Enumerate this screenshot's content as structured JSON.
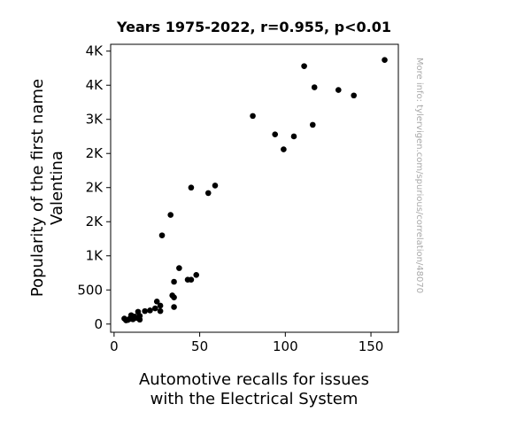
{
  "chart_data": {
    "type": "scatter",
    "title": "Years 1975-2022, r=0.955, p<0.01",
    "xlabel": [
      "Automotive recalls for issues",
      "with the Electrical System"
    ],
    "ylabel": [
      "Popularity of the first name",
      "Valentina"
    ],
    "xlim": [
      -2,
      166
    ],
    "ylim": [
      -120,
      4100
    ],
    "x_ticks": [
      {
        "value": 0,
        "label": "0"
      },
      {
        "value": 50,
        "label": "50"
      },
      {
        "value": 100,
        "label": "100"
      },
      {
        "value": 150,
        "label": "150"
      }
    ],
    "y_ticks": [
      {
        "value": 0,
        "label": "0"
      },
      {
        "value": 500,
        "label": "500"
      },
      {
        "value": 1000,
        "label": "1K"
      },
      {
        "value": 1500,
        "label": "2K"
      },
      {
        "value": 2000,
        "label": "2K"
      },
      {
        "value": 2500,
        "label": "2K"
      },
      {
        "value": 3000,
        "label": "3K"
      },
      {
        "value": 3500,
        "label": "4K"
      },
      {
        "value": 4000,
        "label": "4K"
      }
    ],
    "grid": false,
    "marker_color": "#000000",
    "points": [
      {
        "x": 6,
        "y": 80
      },
      {
        "x": 7,
        "y": 55
      },
      {
        "x": 8,
        "y": 60
      },
      {
        "x": 9,
        "y": 75
      },
      {
        "x": 10,
        "y": 130
      },
      {
        "x": 11,
        "y": 70
      },
      {
        "x": 12,
        "y": 110
      },
      {
        "x": 13,
        "y": 90
      },
      {
        "x": 14,
        "y": 180
      },
      {
        "x": 15,
        "y": 120
      },
      {
        "x": 15,
        "y": 65
      },
      {
        "x": 18,
        "y": 190
      },
      {
        "x": 21,
        "y": 200
      },
      {
        "x": 24,
        "y": 230
      },
      {
        "x": 25,
        "y": 330
      },
      {
        "x": 27,
        "y": 270
      },
      {
        "x": 27,
        "y": 190
      },
      {
        "x": 28,
        "y": 1300
      },
      {
        "x": 33,
        "y": 1600
      },
      {
        "x": 34,
        "y": 420
      },
      {
        "x": 35,
        "y": 390
      },
      {
        "x": 35,
        "y": 620
      },
      {
        "x": 35,
        "y": 250
      },
      {
        "x": 38,
        "y": 820
      },
      {
        "x": 43,
        "y": 650
      },
      {
        "x": 45,
        "y": 650
      },
      {
        "x": 45,
        "y": 2000
      },
      {
        "x": 48,
        "y": 720
      },
      {
        "x": 55,
        "y": 1920
      },
      {
        "x": 59,
        "y": 2030
      },
      {
        "x": 81,
        "y": 3050
      },
      {
        "x": 94,
        "y": 2780
      },
      {
        "x": 99,
        "y": 2560
      },
      {
        "x": 105,
        "y": 2750
      },
      {
        "x": 111,
        "y": 3780
      },
      {
        "x": 116,
        "y": 2920
      },
      {
        "x": 117,
        "y": 3470
      },
      {
        "x": 131,
        "y": 3430
      },
      {
        "x": 140,
        "y": 3350
      },
      {
        "x": 158,
        "y": 3870
      }
    ]
  },
  "watermark": "More info: tylervigen.com/spurious/correlation/48070"
}
